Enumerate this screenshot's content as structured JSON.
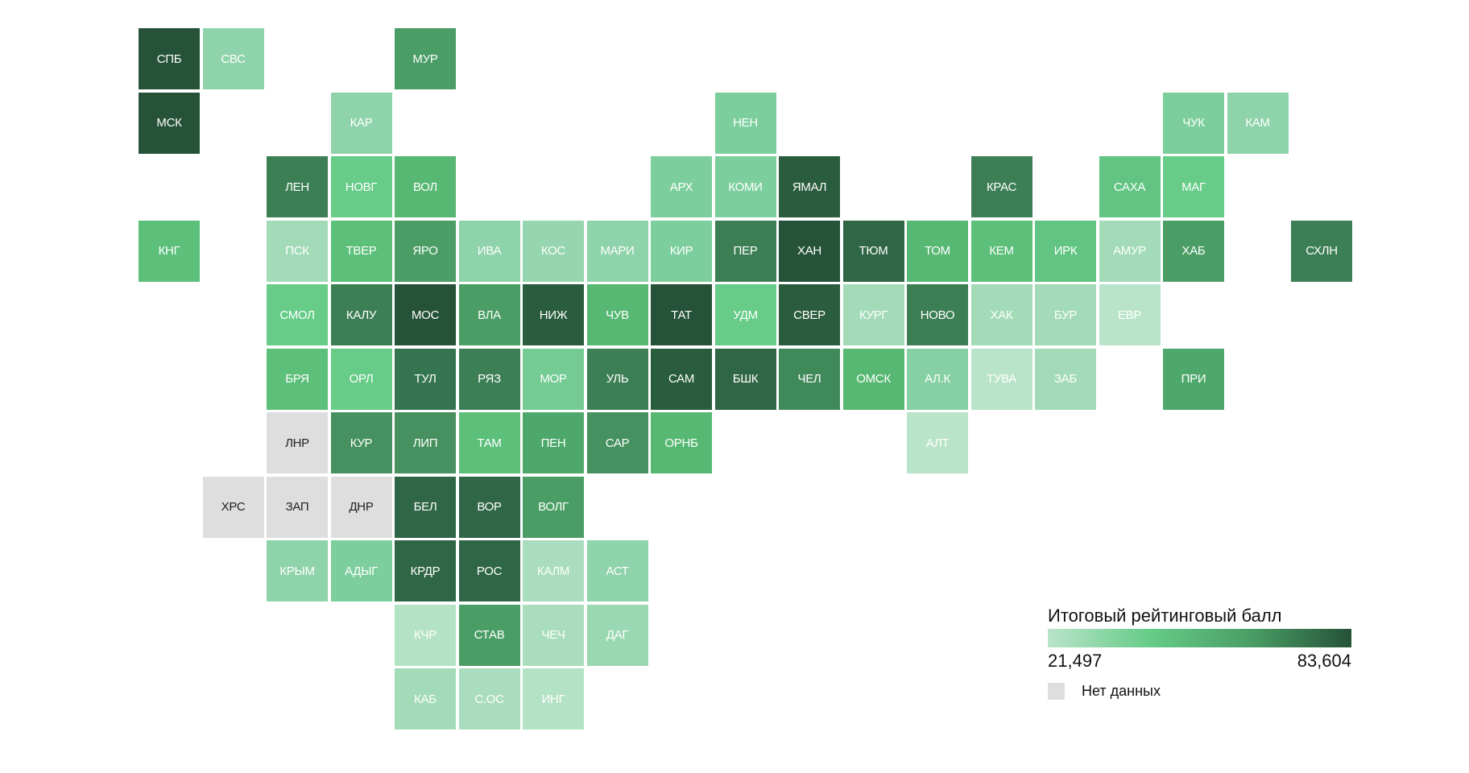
{
  "chart_data": {
    "type": "heatmap",
    "subtype": "tile-grid map of Russian regions",
    "legend": {
      "title": "Итоговый рейтинговый балл",
      "min_label": "21,497",
      "max_label": "83,604",
      "min": 21.497,
      "max": 83.604,
      "gradient": [
        "#b9e4c9",
        "#66cc88",
        "#4a9e65",
        "#255238"
      ],
      "no_data_label": "Нет данных",
      "no_data_color": "#dedede"
    },
    "regions": [
      {
        "id": "СПБ",
        "color": "#255238"
      },
      {
        "id": "СВС",
        "color": "#8fd3aa"
      },
      {
        "id": "МУР",
        "color": "#4a9e65"
      },
      {
        "id": "МСК",
        "color": "#255238"
      },
      {
        "id": "КАР",
        "color": "#8fd3aa"
      },
      {
        "id": "НЕН",
        "color": "#7ccf9c"
      },
      {
        "id": "ЧУК",
        "color": "#7ccf9c"
      },
      {
        "id": "КАМ",
        "color": "#8fd3aa"
      },
      {
        "id": "ЛЕН",
        "color": "#3d7f55"
      },
      {
        "id": "НОВГ",
        "color": "#66cc88"
      },
      {
        "id": "ВОЛ",
        "color": "#57b873"
      },
      {
        "id": "АРХ",
        "color": "#7ccf9c"
      },
      {
        "id": "КОМИ",
        "color": "#7ccf9c"
      },
      {
        "id": "ЯМАЛ",
        "color": "#2a5c3e"
      },
      {
        "id": "КРАС",
        "color": "#3d7f55"
      },
      {
        "id": "САХА",
        "color": "#62c482"
      },
      {
        "id": "МАГ",
        "color": "#66cc88"
      },
      {
        "id": "КНГ",
        "color": "#5cbf7a"
      },
      {
        "id": "ПСК",
        "color": "#a3dbb8"
      },
      {
        "id": "ТВЕР",
        "color": "#5cbf7a"
      },
      {
        "id": "ЯРО",
        "color": "#4a9e65"
      },
      {
        "id": "ИВА",
        "color": "#8fd3aa"
      },
      {
        "id": "КОС",
        "color": "#95d6ae"
      },
      {
        "id": "МАРИ",
        "color": "#8fd3aa"
      },
      {
        "id": "КИР",
        "color": "#7ccf9c"
      },
      {
        "id": "ПЕР",
        "color": "#3d7f55"
      },
      {
        "id": "ХАН",
        "color": "#255238"
      },
      {
        "id": "ТЮМ",
        "color": "#2f6646"
      },
      {
        "id": "ТОМ",
        "color": "#57b873"
      },
      {
        "id": "КЕМ",
        "color": "#5cbf7a"
      },
      {
        "id": "ИРК",
        "color": "#62c482"
      },
      {
        "id": "АМУР",
        "color": "#a3dbb8"
      },
      {
        "id": "ХАБ",
        "color": "#4a9e65"
      },
      {
        "id": "СХЛН",
        "color": "#3d7f55"
      },
      {
        "id": "СМОЛ",
        "color": "#66cc88"
      },
      {
        "id": "КАЛУ",
        "color": "#3d7f55"
      },
      {
        "id": "МОС",
        "color": "#255238"
      },
      {
        "id": "ВЛА",
        "color": "#4a9e65"
      },
      {
        "id": "НИЖ",
        "color": "#2a5c3e"
      },
      {
        "id": "ЧУВ",
        "color": "#57b873"
      },
      {
        "id": "ТАТ",
        "color": "#255238"
      },
      {
        "id": "УДМ",
        "color": "#66cc88"
      },
      {
        "id": "СВЕР",
        "color": "#2a5c3e"
      },
      {
        "id": "КУРГ",
        "color": "#a3dbb8"
      },
      {
        "id": "НОВО",
        "color": "#3d7f55"
      },
      {
        "id": "ХАК",
        "color": "#a3dbb8"
      },
      {
        "id": "БУР",
        "color": "#a3dbb8"
      },
      {
        "id": "ЕВР",
        "color": "#b9e4c9"
      },
      {
        "id": "БРЯ",
        "color": "#5cbf7a"
      },
      {
        "id": "ОРЛ",
        "color": "#66cc88"
      },
      {
        "id": "ТУЛ",
        "color": "#347550"
      },
      {
        "id": "РЯЗ",
        "color": "#3d7f55"
      },
      {
        "id": "МОР",
        "color": "#74cb94"
      },
      {
        "id": "УЛЬ",
        "color": "#3d7f55"
      },
      {
        "id": "САМ",
        "color": "#2a5c3e"
      },
      {
        "id": "БШК",
        "color": "#2f6646"
      },
      {
        "id": "ЧЕЛ",
        "color": "#408a5a"
      },
      {
        "id": "ОМСК",
        "color": "#57b873"
      },
      {
        "id": "АЛ.К",
        "color": "#86d0a3"
      },
      {
        "id": "ТУВА",
        "color": "#b9e4c9"
      },
      {
        "id": "ЗАБ",
        "color": "#a3dbb8"
      },
      {
        "id": "ПРИ",
        "color": "#4fa86b"
      },
      {
        "id": "ЛНР",
        "color": "#dedede",
        "no_data": true
      },
      {
        "id": "КУР",
        "color": "#46915f"
      },
      {
        "id": "ЛИП",
        "color": "#46915f"
      },
      {
        "id": "ТАМ",
        "color": "#5cbf7a"
      },
      {
        "id": "ПЕН",
        "color": "#4fa86b"
      },
      {
        "id": "САР",
        "color": "#46915f"
      },
      {
        "id": "ОРНБ",
        "color": "#57b873"
      },
      {
        "id": "АЛТ",
        "color": "#b9e4c9"
      },
      {
        "id": "ХРС",
        "color": "#dedede",
        "no_data": true
      },
      {
        "id": "ЗАП",
        "color": "#dedede",
        "no_data": true
      },
      {
        "id": "ДНР",
        "color": "#dedede",
        "no_data": true
      },
      {
        "id": "БЕЛ",
        "color": "#2f6646"
      },
      {
        "id": "ВОР",
        "color": "#2f6646"
      },
      {
        "id": "ВОЛГ",
        "color": "#4a9e65"
      },
      {
        "id": "КРЫМ",
        "color": "#8fd3aa"
      },
      {
        "id": "АДЫГ",
        "color": "#7ccf9c"
      },
      {
        "id": "КРДР",
        "color": "#2f6646"
      },
      {
        "id": "РОС",
        "color": "#2f6646"
      },
      {
        "id": "КАЛМ",
        "color": "#a9ddbd"
      },
      {
        "id": "АСТ",
        "color": "#8fd3aa"
      },
      {
        "id": "КЧР",
        "color": "#b4e2c5"
      },
      {
        "id": "СТАВ",
        "color": "#4a9e65"
      },
      {
        "id": "ЧЕЧ",
        "color": "#a9ddbd"
      },
      {
        "id": "ДАГ",
        "color": "#9ad8b1"
      },
      {
        "id": "КАБ",
        "color": "#a3dbb8"
      },
      {
        "id": "С.ОС",
        "color": "#a9ddbd"
      },
      {
        "id": "ИНГ",
        "color": "#b4e2c5"
      }
    ]
  }
}
